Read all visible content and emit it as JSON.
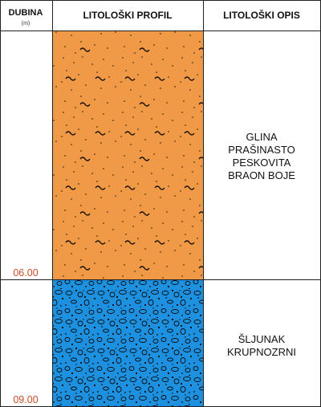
{
  "header": {
    "depth_title": "DUBINA",
    "depth_unit": "(m)",
    "profile_title": "LITOLOŠKI PROFIL",
    "description_title": "LITOLOŠKI OPIS"
  },
  "layers": [
    {
      "name": "clay-layer",
      "bottom_depth": "06.00",
      "color": "#F09A48",
      "pattern": "sand-dots-with-tilde",
      "description_lines": [
        "GLINA",
        "PRAŠINASTO",
        "PESKOVITA",
        "BRAON BOJE"
      ]
    },
    {
      "name": "gravel-layer",
      "bottom_depth": "09.00",
      "color": "#1E90E0",
      "pattern": "gravel-ovals",
      "description_lines": [
        "ŠLJUNAK",
        "KRUPNOZRNI"
      ]
    }
  ],
  "colors": {
    "grid_line": "#222222",
    "depth_text": "#C8502A"
  }
}
